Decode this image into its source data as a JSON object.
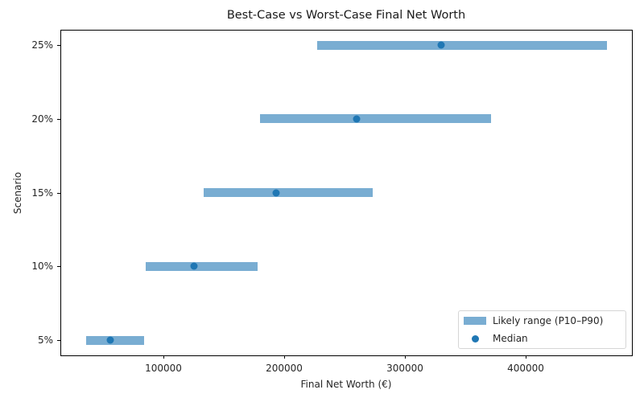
{
  "chart_data": {
    "type": "range-dot",
    "title": "Best-Case vs Worst-Case Final Net Worth",
    "xlabel": "Final Net Worth (€)",
    "ylabel": "Scenario",
    "categories": [
      "5%",
      "10%",
      "15%",
      "20%",
      "25%"
    ],
    "series": [
      {
        "name": "Likely range (P10–P90)",
        "kind": "range",
        "low": [
          36000,
          85000,
          133000,
          180000,
          227000
        ],
        "high": [
          84000,
          178000,
          273000,
          371000,
          467000
        ]
      },
      {
        "name": "Median",
        "kind": "scatter",
        "values": [
          56000,
          125000,
          193000,
          260000,
          330000
        ]
      }
    ],
    "xticks": [
      100000,
      200000,
      300000,
      400000
    ],
    "xlim": [
      14700,
      488000
    ],
    "grid": false,
    "legend_position": "lower right",
    "colors": {
      "range": "#1f77b4",
      "range_alpha": 0.6,
      "median": "#1f77b4"
    }
  },
  "labels": {
    "title": "Best-Case vs Worst-Case Final Net Worth",
    "xlabel": "Final Net Worth (€)",
    "ylabel": "Scenario",
    "yticks": [
      "25%",
      "20%",
      "15%",
      "10%",
      "5%"
    ],
    "xticks": [
      "100000",
      "200000",
      "300000",
      "400000"
    ],
    "legend_range": "Likely range (P10–P90)",
    "legend_median": "Median"
  }
}
